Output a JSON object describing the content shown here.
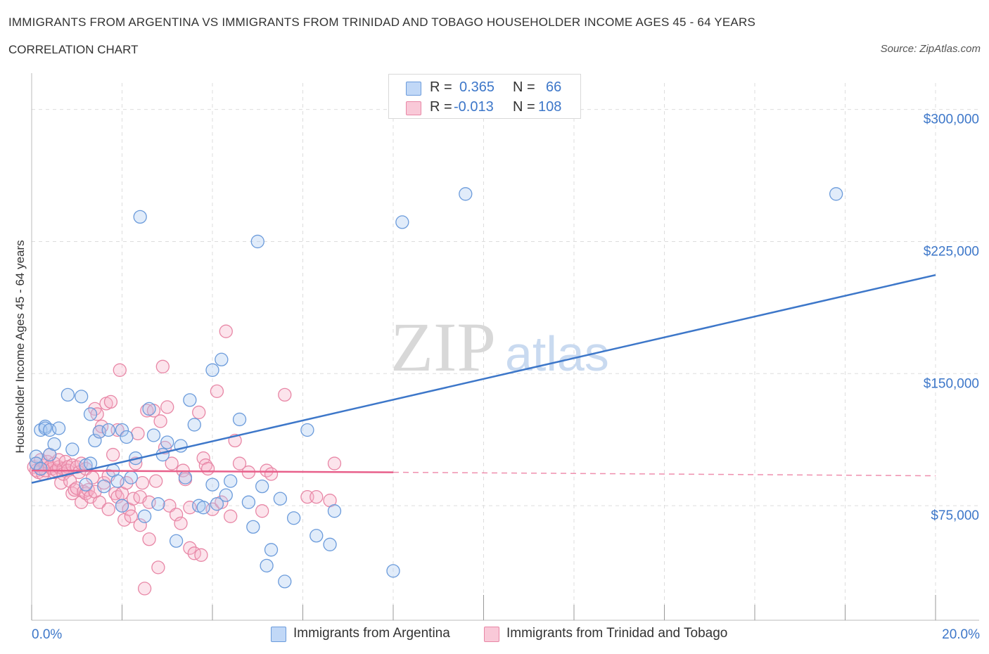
{
  "header": {
    "title": "IMMIGRANTS FROM ARGENTINA VS IMMIGRANTS FROM TRINIDAD AND TOBAGO HOUSEHOLDER INCOME AGES 45 - 64 YEARS",
    "subtitle": "CORRELATION CHART",
    "source_prefix": "Source:",
    "source_name": "ZipAtlas.com"
  },
  "legend": {
    "r_label": "R =",
    "n_label": "N =",
    "series1": {
      "r": "0.365",
      "n": "66"
    },
    "series2": {
      "r": "-0.013",
      "n": "108"
    }
  },
  "watermark": {
    "zip": "ZIP",
    "atlas": "atlas"
  },
  "colors": {
    "blue_fill": "#a9c8f2",
    "blue_stroke": "#6b9bdb",
    "blue_line": "#3d77c9",
    "pink_fill": "#f5b3c8",
    "pink_stroke": "#e887a6",
    "pink_line": "#e8608b",
    "axis_text": "#3d77c9",
    "grid": "#dddddd"
  },
  "chart_data": {
    "type": "scatter",
    "title": "IMMIGRANTS FROM ARGENTINA VS IMMIGRANTS FROM TRINIDAD AND TOBAGO HOUSEHOLDER INCOME AGES 45 - 64 YEARS",
    "xlabel": "",
    "ylabel": "Householder Income Ages 45 - 64 years",
    "xlim": [
      0,
      20
    ],
    "ylim": [
      10000,
      315000
    ],
    "x_ticks": [
      {
        "value": 0,
        "label": "0.0%"
      },
      {
        "value": 20,
        "label": "20.0%"
      }
    ],
    "y_ticks": [
      {
        "value": 75000,
        "label": "$75,000"
      },
      {
        "value": 150000,
        "label": "$150,000"
      },
      {
        "value": 225000,
        "label": "$225,000"
      },
      {
        "value": 300000,
        "label": "$300,000"
      }
    ],
    "grid": true,
    "legend_position": "bottom-center",
    "series": [
      {
        "name": "Immigrants from Argentina",
        "color": "#6b9bdb",
        "trend": {
          "x0": 0,
          "y0": 88000,
          "x1": 20,
          "y1": 206000
        },
        "points": [
          [
            0.1,
            103000
          ],
          [
            0.1,
            99000
          ],
          [
            0.2,
            96000
          ],
          [
            0.2,
            118000
          ],
          [
            0.3,
            120000
          ],
          [
            0.3,
            119000
          ],
          [
            0.4,
            104000
          ],
          [
            0.4,
            118000
          ],
          [
            0.5,
            110000
          ],
          [
            0.6,
            119000
          ],
          [
            0.8,
            138000
          ],
          [
            0.9,
            107000
          ],
          [
            1.1,
            137000
          ],
          [
            1.2,
            87000
          ],
          [
            1.2,
            98000
          ],
          [
            1.3,
            99000
          ],
          [
            1.3,
            127000
          ],
          [
            1.4,
            112000
          ],
          [
            1.5,
            117000
          ],
          [
            1.6,
            86000
          ],
          [
            1.7,
            118000
          ],
          [
            1.8,
            95000
          ],
          [
            1.9,
            89000
          ],
          [
            2.0,
            118000
          ],
          [
            2.0,
            75000
          ],
          [
            2.1,
            114000
          ],
          [
            2.2,
            91000
          ],
          [
            2.3,
            102000
          ],
          [
            2.4,
            239000
          ],
          [
            2.5,
            69000
          ],
          [
            2.6,
            130000
          ],
          [
            2.7,
            115000
          ],
          [
            2.8,
            76000
          ],
          [
            2.9,
            104000
          ],
          [
            3.0,
            111000
          ],
          [
            3.2,
            55000
          ],
          [
            3.3,
            109000
          ],
          [
            3.4,
            91000
          ],
          [
            3.5,
            135000
          ],
          [
            3.6,
            121000
          ],
          [
            3.7,
            75000
          ],
          [
            3.8,
            74000
          ],
          [
            4.0,
            87000
          ],
          [
            4.0,
            152000
          ],
          [
            4.1,
            76000
          ],
          [
            4.2,
            158000
          ],
          [
            4.3,
            81000
          ],
          [
            4.4,
            89000
          ],
          [
            4.6,
            124000
          ],
          [
            4.8,
            77000
          ],
          [
            4.9,
            63000
          ],
          [
            5.0,
            225000
          ],
          [
            5.1,
            86000
          ],
          [
            5.2,
            41000
          ],
          [
            5.3,
            50000
          ],
          [
            5.5,
            79000
          ],
          [
            5.6,
            32000
          ],
          [
            5.8,
            68000
          ],
          [
            6.1,
            118000
          ],
          [
            6.3,
            58000
          ],
          [
            6.6,
            53000
          ],
          [
            6.7,
            72000
          ],
          [
            8.0,
            38000
          ],
          [
            8.2,
            236000
          ],
          [
            9.6,
            252000
          ],
          [
            17.8,
            252000
          ]
        ]
      },
      {
        "name": "Immigrants from Trinidad and Tobago",
        "color": "#e887a6",
        "trend": {
          "x0": 0,
          "y0": 95000,
          "x1": 8,
          "y1": 94000,
          "dash_x1": 20,
          "dash_y1": 92000
        },
        "points": [
          [
            0.05,
            97000
          ],
          [
            0.1,
            95000
          ],
          [
            0.1,
            99000
          ],
          [
            0.15,
            94000
          ],
          [
            0.2,
            101000
          ],
          [
            0.2,
            96000
          ],
          [
            0.25,
            93000
          ],
          [
            0.3,
            98000
          ],
          [
            0.3,
            95000
          ],
          [
            0.35,
            100000
          ],
          [
            0.4,
            97000
          ],
          [
            0.4,
            104000
          ],
          [
            0.45,
            96000
          ],
          [
            0.5,
            94000
          ],
          [
            0.5,
            99000
          ],
          [
            0.55,
            95000
          ],
          [
            0.6,
            97000
          ],
          [
            0.6,
            101000
          ],
          [
            0.65,
            88000
          ],
          [
            0.7,
            96000
          ],
          [
            0.7,
            93000
          ],
          [
            0.75,
            100000
          ],
          [
            0.8,
            97000
          ],
          [
            0.8,
            95000
          ],
          [
            0.85,
            89000
          ],
          [
            0.9,
            82000
          ],
          [
            0.9,
            98000
          ],
          [
            0.95,
            84000
          ],
          [
            1.0,
            85000
          ],
          [
            1.0,
            97000
          ],
          [
            1.05,
            94000
          ],
          [
            1.1,
            77000
          ],
          [
            1.1,
            99000
          ],
          [
            1.15,
            83000
          ],
          [
            1.2,
            82000
          ],
          [
            1.2,
            96000
          ],
          [
            1.25,
            84000
          ],
          [
            1.3,
            80000
          ],
          [
            1.35,
            91000
          ],
          [
            1.4,
            83000
          ],
          [
            1.4,
            130000
          ],
          [
            1.45,
            127000
          ],
          [
            1.5,
            117000
          ],
          [
            1.5,
            77000
          ],
          [
            1.55,
            120000
          ],
          [
            1.6,
            88000
          ],
          [
            1.65,
            133000
          ],
          [
            1.7,
            73000
          ],
          [
            1.7,
            92000
          ],
          [
            1.75,
            134000
          ],
          [
            1.8,
            104000
          ],
          [
            1.85,
            82000
          ],
          [
            1.9,
            118000
          ],
          [
            1.9,
            80000
          ],
          [
            1.95,
            152000
          ],
          [
            2.0,
            82000
          ],
          [
            2.0,
            75000
          ],
          [
            2.05,
            67000
          ],
          [
            2.1,
            88000
          ],
          [
            2.15,
            73000
          ],
          [
            2.2,
            69000
          ],
          [
            2.25,
            79000
          ],
          [
            2.3,
            99000
          ],
          [
            2.35,
            116000
          ],
          [
            2.4,
            80000
          ],
          [
            2.4,
            64000
          ],
          [
            2.45,
            88000
          ],
          [
            2.5,
            28000
          ],
          [
            2.55,
            129000
          ],
          [
            2.6,
            77000
          ],
          [
            2.6,
            56000
          ],
          [
            2.7,
            129000
          ],
          [
            2.75,
            89000
          ],
          [
            2.8,
            40000
          ],
          [
            2.85,
            123000
          ],
          [
            2.9,
            154000
          ],
          [
            2.95,
            108000
          ],
          [
            3.0,
            131000
          ],
          [
            3.05,
            75000
          ],
          [
            3.1,
            99000
          ],
          [
            3.2,
            70000
          ],
          [
            3.3,
            65000
          ],
          [
            3.35,
            95000
          ],
          [
            3.4,
            90000
          ],
          [
            3.5,
            74000
          ],
          [
            3.5,
            51000
          ],
          [
            3.6,
            48000
          ],
          [
            3.7,
            128000
          ],
          [
            3.75,
            47000
          ],
          [
            3.8,
            102000
          ],
          [
            3.85,
            98000
          ],
          [
            3.9,
            96000
          ],
          [
            4.0,
            73000
          ],
          [
            4.1,
            140000
          ],
          [
            4.2,
            77000
          ],
          [
            4.3,
            174000
          ],
          [
            4.4,
            69000
          ],
          [
            4.5,
            112000
          ],
          [
            4.6,
            99000
          ],
          [
            4.8,
            94000
          ],
          [
            5.1,
            72000
          ],
          [
            5.2,
            95000
          ],
          [
            5.3,
            93000
          ],
          [
            5.6,
            138000
          ],
          [
            6.1,
            80000
          ],
          [
            6.3,
            80000
          ],
          [
            6.6,
            78000
          ],
          [
            6.7,
            99000
          ]
        ]
      }
    ]
  },
  "bottom_legend": {
    "series1_label": "Immigrants from Argentina",
    "series2_label": "Immigrants from Trinidad and Tobago"
  }
}
